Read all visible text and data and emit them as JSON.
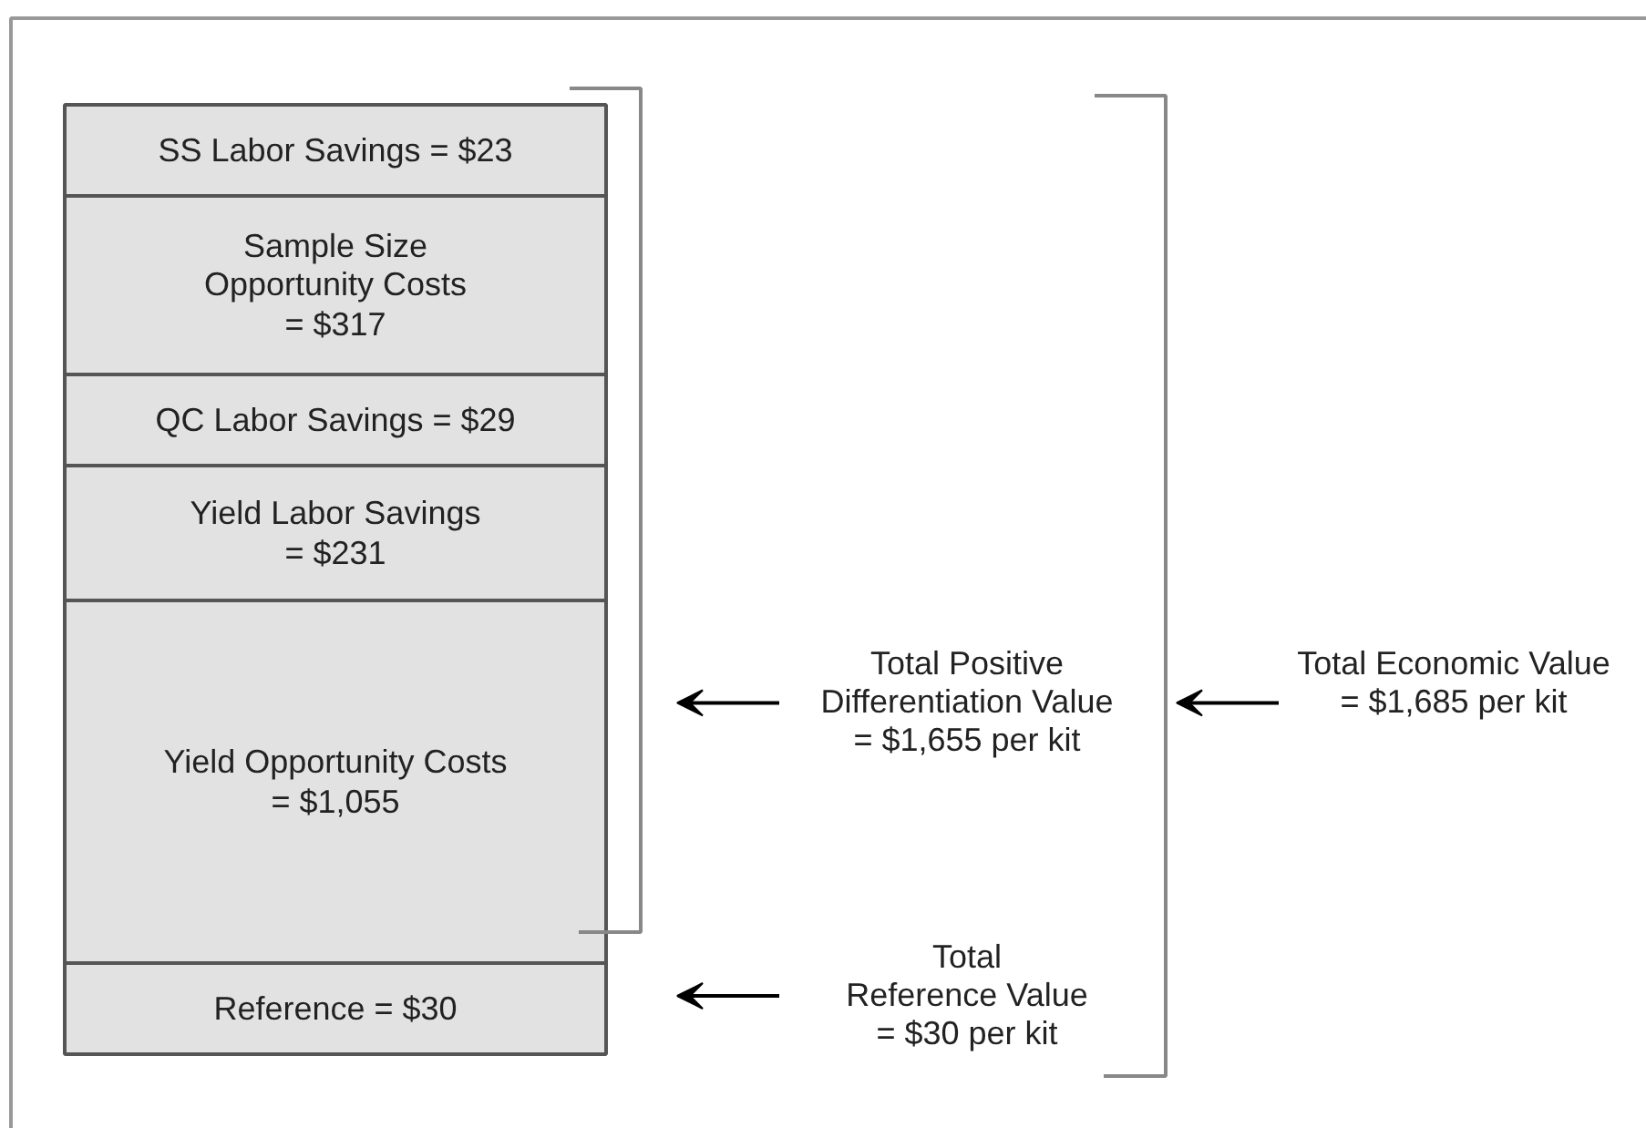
{
  "chart_data": {
    "type": "other",
    "categories": [
      "SS Labor Savings",
      "Sample Size\nOpportunity Costs",
      "QC Labor Savings",
      "Yield Labor Savings",
      "Yield Opportunity Costs",
      "Reference"
    ],
    "values": [
      23,
      317,
      29,
      231,
      1055,
      30
    ],
    "value_labels": [
      "= $23",
      "= $317",
      "= $29",
      "= $231",
      "= $1,055",
      "= $30"
    ],
    "color": "#e2e2e2",
    "annotations": [
      "Total Positive\nDifferentiation Value\n= $1,655 per kit",
      "Total\nReference Value\n= $30 per kit",
      "Total Economic Value\n= $1,685 per kit"
    ]
  }
}
